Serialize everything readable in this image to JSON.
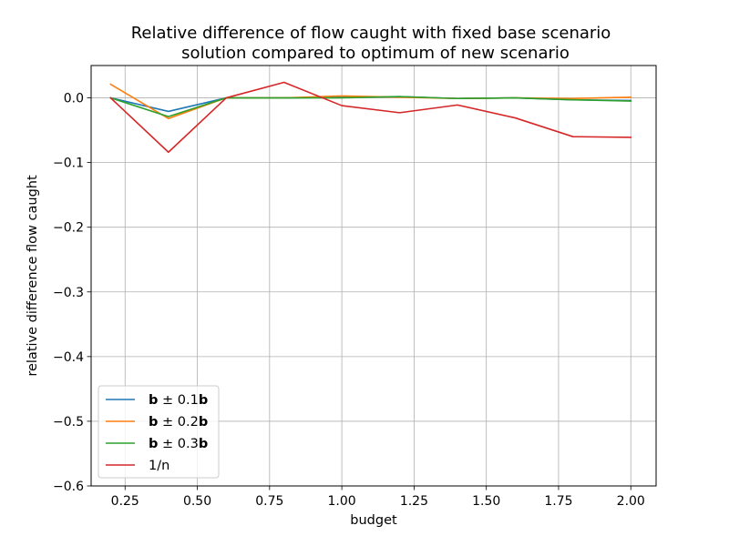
{
  "chart_data": {
    "type": "line",
    "title": [
      "Relative difference of flow caught with fixed base scenario",
      "solution compared to optimum of new scenario"
    ],
    "xlabel": "budget",
    "ylabel": "relative difference flow caught",
    "xlim": [
      0.1325,
      2.0875
    ],
    "ylim": [
      -0.6,
      0.05
    ],
    "xticks": [
      0.25,
      0.5,
      0.75,
      1.0,
      1.25,
      1.5,
      1.75,
      2.0
    ],
    "xtick_labels": [
      "0.25",
      "0.50",
      "0.75",
      "1.00",
      "1.25",
      "1.50",
      "1.75",
      "2.00"
    ],
    "yticks": [
      0.0,
      -0.1,
      -0.2,
      -0.3,
      -0.4,
      -0.5,
      -0.6
    ],
    "ytick_labels": [
      "0.0",
      "−0.1",
      "−0.2",
      "−0.3",
      "−0.4",
      "−0.5",
      "−0.6"
    ],
    "grid": true,
    "legend_position": "lower-left",
    "x": [
      0.2,
      0.4,
      0.6,
      0.8,
      1.0,
      1.2,
      1.4,
      1.6,
      1.8,
      2.0
    ],
    "series": [
      {
        "name": "b ± 0.1b",
        "legend_parts": [
          "b",
          " ± 0.1",
          "b"
        ],
        "color": "#1f77b4",
        "values": [
          0.0,
          -0.021,
          0.0,
          0.0,
          0.001,
          0.002,
          -0.001,
          0.0,
          -0.003,
          -0.004
        ]
      },
      {
        "name": "b ± 0.2b",
        "legend_parts": [
          "b",
          " ± 0.2",
          "b"
        ],
        "color": "#ff7f0e",
        "values": [
          0.021,
          -0.032,
          0.0,
          0.0,
          0.003,
          0.001,
          -0.001,
          0.0,
          -0.001,
          0.001
        ]
      },
      {
        "name": "b ± 0.3b",
        "legend_parts": [
          "b",
          " ± 0.3",
          "b"
        ],
        "color": "#2ca02c",
        "values": [
          0.0,
          -0.029,
          0.0,
          0.0,
          0.0,
          0.002,
          -0.001,
          0.0,
          -0.003,
          -0.005
        ]
      },
      {
        "name": "1/n",
        "legend_parts": [
          "1/n"
        ],
        "color": "#d62728",
        "values": [
          0.0,
          -0.084,
          0.0,
          0.024,
          -0.012,
          -0.023,
          -0.011,
          -0.031,
          -0.06,
          -0.061
        ]
      }
    ]
  }
}
